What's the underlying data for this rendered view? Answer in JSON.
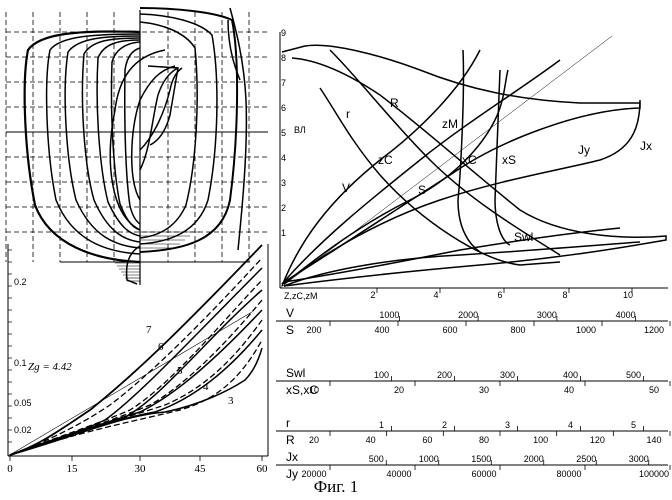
{
  "caption": "Фиг. 1",
  "waterline_marks": [
    "9",
    "8",
    "7",
    "6",
    "5",
    "4",
    "3",
    "2",
    "1"
  ],
  "waterline_label": "ВЛ",
  "stability_chart": {
    "y_ticks": [
      "0.2",
      "0.1",
      "0.05",
      "0.02"
    ],
    "x_ticks": [
      "0",
      "15",
      "30",
      "45",
      "60"
    ],
    "zg_label": "Zg = 4.42",
    "curve_labels": [
      "7",
      "6",
      "5",
      "4",
      "3"
    ]
  },
  "hydro_chart": {
    "curve_labels": [
      "r",
      "R",
      "zM",
      "zC",
      "xC",
      "xS",
      "V",
      "S",
      "Jy",
      "Jx",
      "Swl"
    ],
    "z_scale": {
      "label": "Z,zC,zM",
      "ticks": [
        "2",
        "4",
        "6",
        "8",
        "10"
      ]
    }
  },
  "scales": [
    {
      "top_label": "V",
      "top_ticks": [
        "1000",
        "2000",
        "3000",
        "4000"
      ],
      "bottom_label": "S",
      "bottom_ticks": [
        "200",
        "400",
        "600",
        "800",
        "1000",
        "1200"
      ]
    },
    {
      "top_label": "Swl",
      "top_ticks": [
        "100",
        "200",
        "300",
        "400",
        "500"
      ],
      "bottom_label": "xS,xC",
      "bottom_ticks": [
        "10",
        "20",
        "30",
        "40",
        "50"
      ]
    },
    {
      "top_label": "r",
      "top_ticks": [
        "1",
        "2",
        "3",
        "4",
        "5"
      ],
      "bottom_label": "R",
      "bottom_ticks": [
        "20",
        "40",
        "60",
        "80",
        "100",
        "120",
        "140"
      ]
    },
    {
      "top_label": "Jx",
      "top_ticks": [
        "500",
        "1000",
        "1500",
        "2000",
        "2500",
        "3000"
      ],
      "bottom_label": "Jy",
      "bottom_ticks": [
        "20000",
        "40000",
        "60000",
        "80000",
        "100000"
      ]
    }
  ]
}
